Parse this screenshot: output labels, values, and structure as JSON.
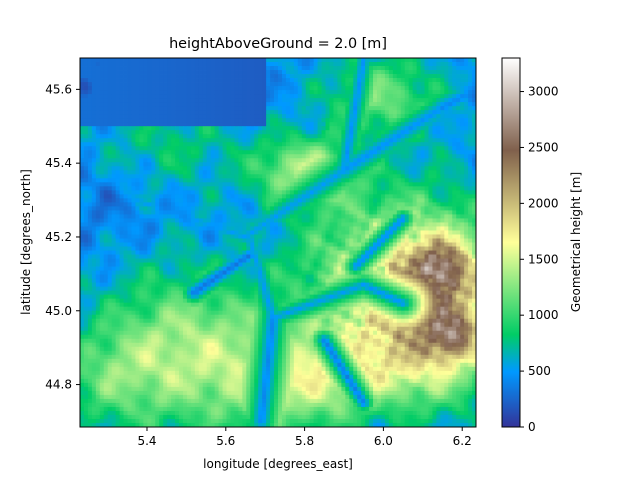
{
  "chart_data": {
    "type": "heatmap",
    "title": "heightAboveGround = 2.0 [m]",
    "xlabel": "longitude [degrees_east]",
    "ylabel": "latitude [degrees_north]",
    "colorbar_label": "Geometrical height [m]",
    "xlim": [
      5.23,
      6.235
    ],
    "ylim": [
      44.685,
      45.685
    ],
    "zlim": [
      0,
      3300
    ],
    "x_ticks": [
      5.4,
      5.6,
      5.8,
      6.0,
      6.2
    ],
    "x_tick_labels": [
      "5.4",
      "5.6",
      "5.8",
      "6.0",
      "6.2"
    ],
    "y_ticks": [
      44.8,
      45.0,
      45.2,
      45.4,
      45.6
    ],
    "y_tick_labels": [
      "44.8",
      "45.0",
      "45.2",
      "45.4",
      "45.6"
    ],
    "colorbar_ticks": [
      0,
      500,
      1000,
      1500,
      2000,
      2500,
      3000
    ],
    "colorbar_tick_labels": [
      "0",
      "500",
      "1000",
      "1500",
      "2000",
      "2500",
      "3000"
    ],
    "colormap": "terrain",
    "colormap_stops": [
      {
        "v": 0.0,
        "color": "#333399"
      },
      {
        "v": 0.15,
        "color": "#0099ff"
      },
      {
        "v": 0.25,
        "color": "#00cc66"
      },
      {
        "v": 0.5,
        "color": "#ffff99"
      },
      {
        "v": 0.75,
        "color": "#80604c"
      },
      {
        "v": 1.0,
        "color": "#ffffff"
      }
    ],
    "grid": false,
    "legend": "colorbar-right"
  }
}
